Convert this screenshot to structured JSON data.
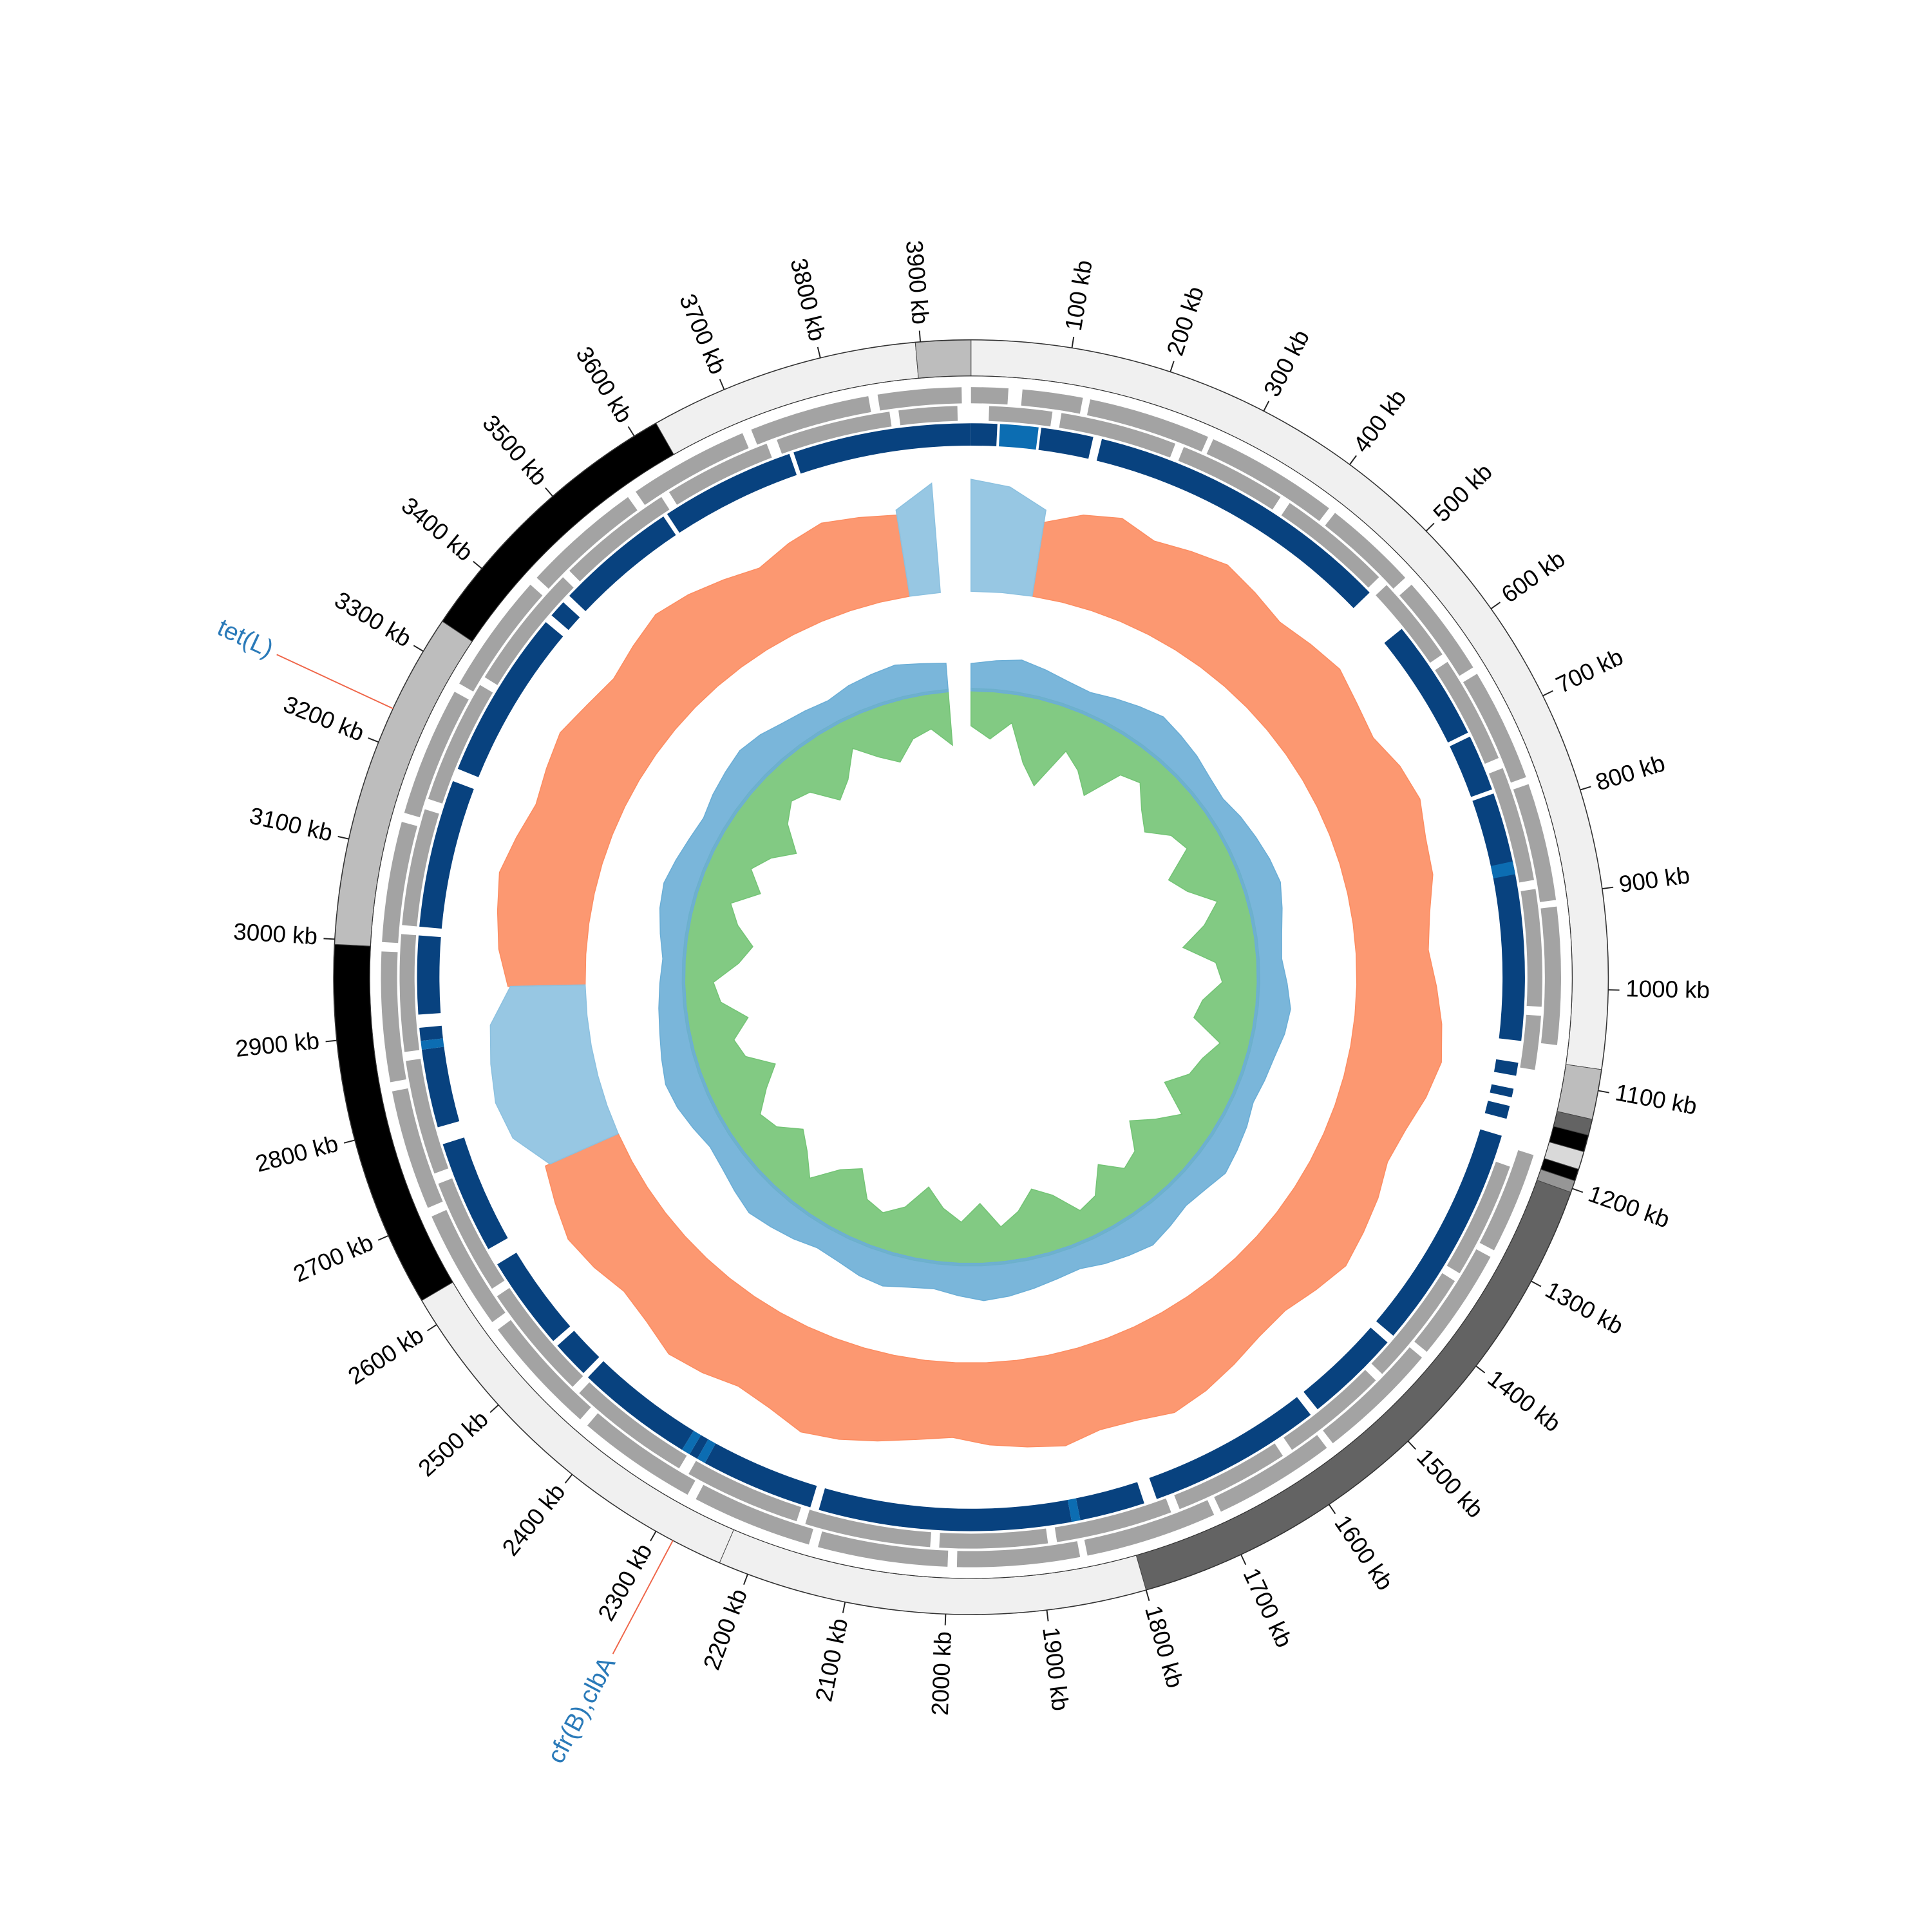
{
  "chart_data": {
    "type": "circular",
    "genome_length": 3950,
    "ticks": [
      {
        "value": 100,
        "label": "100 kb"
      },
      {
        "value": 200,
        "label": "200 kb"
      },
      {
        "value": 300,
        "label": "300 kb"
      },
      {
        "value": 400,
        "label": "400 kb"
      },
      {
        "value": 500,
        "label": "500 kb"
      },
      {
        "value": 600,
        "label": "600 kb"
      },
      {
        "value": 700,
        "label": "700 kb"
      },
      {
        "value": 800,
        "label": "800 kb"
      },
      {
        "value": 900,
        "label": "900 kb"
      },
      {
        "value": 1000,
        "label": "1000 kb"
      },
      {
        "value": 1100,
        "label": "1100 kb"
      },
      {
        "value": 1200,
        "label": "1200 kb"
      },
      {
        "value": 1300,
        "label": "1300 kb"
      },
      {
        "value": 1400,
        "label": "1400 kb"
      },
      {
        "value": 1500,
        "label": "1500 kb"
      },
      {
        "value": 1600,
        "label": "1600 kb"
      },
      {
        "value": 1700,
        "label": "1700 kb"
      },
      {
        "value": 1800,
        "label": "1800 kb"
      },
      {
        "value": 1900,
        "label": "1900 kb"
      },
      {
        "value": 2000,
        "label": "2000 kb"
      },
      {
        "value": 2100,
        "label": "2100 kb"
      },
      {
        "value": 2200,
        "label": "2200 kb"
      },
      {
        "value": 2300,
        "label": "2300 kb"
      },
      {
        "value": 2400,
        "label": "2400 kb"
      },
      {
        "value": 2500,
        "label": "2500 kb"
      },
      {
        "value": 2600,
        "label": "2600 kb"
      },
      {
        "value": 2700,
        "label": "2700 kb"
      },
      {
        "value": 2800,
        "label": "2800 kb"
      },
      {
        "value": 2900,
        "label": "2900 kb"
      },
      {
        "value": 3000,
        "label": "3000 kb"
      },
      {
        "value": 3100,
        "label": "3100 kb"
      },
      {
        "value": 3200,
        "label": "3200 kb"
      },
      {
        "value": 3300,
        "label": "3300 kb"
      },
      {
        "value": 3400,
        "label": "3400 kb"
      },
      {
        "value": 3500,
        "label": "3500 kb"
      },
      {
        "value": 3600,
        "label": "3600 kb"
      },
      {
        "value": 3700,
        "label": "3700 kb"
      },
      {
        "value": 3800,
        "label": "3800 kb"
      },
      {
        "value": 3900,
        "label": "3900 kb"
      }
    ],
    "contigs": [
      {
        "start": 0,
        "end": 1079,
        "color": "#f0f0f0"
      },
      {
        "start": 1079,
        "end": 1129,
        "color": "#bdbdbd"
      },
      {
        "start": 1129,
        "end": 1145,
        "color": "#636363"
      },
      {
        "start": 1145,
        "end": 1162,
        "color": "#000000"
      },
      {
        "start": 1162,
        "end": 1180,
        "color": "#d9d9d9"
      },
      {
        "start": 1180,
        "end": 1192,
        "color": "#000000"
      },
      {
        "start": 1192,
        "end": 1204,
        "color": "#969696"
      },
      {
        "start": 1204,
        "end": 1800,
        "color": "#636363"
      },
      {
        "start": 1800,
        "end": 2230,
        "color": "#f0f0f0"
      },
      {
        "start": 2230,
        "end": 2628,
        "color": "#f0f0f0"
      },
      {
        "start": 2628,
        "end": 2995,
        "color": "#000000"
      },
      {
        "start": 2995,
        "end": 3335,
        "color": "#bdbdbd"
      },
      {
        "start": 3335,
        "end": 3625,
        "color": "#000000"
      },
      {
        "start": 3625,
        "end": 3895,
        "color": "#f0f0f0"
      },
      {
        "start": 3895,
        "end": 3950,
        "color": "#bdbdbd"
      }
    ],
    "gene_color": "#a3a3a3",
    "genes": {
      "forward": [
        [
          0,
          40
        ],
        [
          55,
          120
        ],
        [
          128,
          260
        ],
        [
          266,
          410
        ],
        [
          418,
          520
        ],
        [
          530,
          640
        ],
        [
          648,
          770
        ],
        [
          778,
          905
        ],
        [
          912,
          1060
        ],
        [
          1180,
          1290
        ],
        [
          1298,
          1420
        ],
        [
          1428,
          1560
        ],
        [
          1568,
          1700
        ],
        [
          1708,
          1850
        ],
        [
          1858,
          1990
        ],
        [
          2000,
          2140
        ],
        [
          2150,
          2280
        ],
        [
          2290,
          2420
        ],
        [
          2430,
          2560
        ],
        [
          2570,
          2700
        ],
        [
          2710,
          2840
        ],
        [
          2850,
          2990
        ],
        [
          3000,
          3130
        ],
        [
          3140,
          3280
        ],
        [
          3290,
          3420
        ],
        [
          3430,
          3560
        ],
        [
          3570,
          3700
        ],
        [
          3710,
          3840
        ],
        [
          3850,
          3940
        ]
      ],
      "reverse": [
        [
          20,
          90
        ],
        [
          100,
          230
        ],
        [
          240,
          360
        ],
        [
          372,
          500
        ],
        [
          512,
          610
        ],
        [
          620,
          740
        ],
        [
          752,
          880
        ],
        [
          890,
          1020
        ],
        [
          1030,
          1090
        ],
        [
          1200,
          1330
        ],
        [
          1340,
          1470
        ],
        [
          1480,
          1600
        ],
        [
          1612,
          1740
        ],
        [
          1750,
          1880
        ],
        [
          1890,
          2010
        ],
        [
          2020,
          2160
        ],
        [
          2170,
          2300
        ],
        [
          2312,
          2450
        ],
        [
          2460,
          2590
        ],
        [
          2600,
          2730
        ],
        [
          2742,
          2870
        ],
        [
          2880,
          3010
        ],
        [
          3020,
          3150
        ],
        [
          3162,
          3300
        ],
        [
          3310,
          3450
        ],
        [
          3460,
          3590
        ],
        [
          3600,
          3720
        ],
        [
          3732,
          3860
        ],
        [
          3870,
          3935
        ]
      ]
    },
    "hit_tracks": [
      {
        "color": "#08427f",
        "segments": [
          [
            3745,
            3950
          ],
          [
            0,
            30
          ],
          [
            80,
            140
          ],
          [
            150,
            505
          ],
          [
            560,
            700
          ],
          [
            705,
            770
          ],
          [
            775,
            1060
          ],
          [
            1085,
            1100
          ],
          [
            1115,
            1125
          ],
          [
            1135,
            1150
          ],
          [
            1170,
            1430
          ],
          [
            1440,
            1550
          ],
          [
            1560,
            1760
          ],
          [
            1775,
            1850
          ],
          [
            1860,
            2150
          ],
          [
            2160,
            2290
          ],
          [
            2300,
            2310
          ],
          [
            2320,
            2455
          ],
          [
            2462,
            2505
          ],
          [
            2512,
            2620
          ],
          [
            2640,
            2770
          ],
          [
            2790,
            2880
          ],
          [
            2890,
            2905
          ],
          [
            2920,
            3010
          ],
          [
            3020,
            3190
          ],
          [
            3205,
            3400
          ],
          [
            3410,
            3430
          ],
          [
            3440,
            3580
          ],
          [
            3585,
            3740
          ]
        ]
      },
      {
        "color": "#0c6db2",
        "segments": [
          [
            33,
            77
          ],
          [
            855,
            870
          ],
          [
            1850,
            1860
          ],
          [
            2290,
            2300
          ],
          [
            2310,
            2320
          ],
          [
            2880,
            2890
          ]
        ]
      }
    ],
    "x": [
      0,
      50,
      100,
      150,
      200,
      250,
      300,
      350,
      400,
      450,
      500,
      550,
      600,
      650,
      700,
      750,
      800,
      850,
      900,
      950,
      1000,
      1050,
      1100,
      1150,
      1200,
      1250,
      1300,
      1350,
      1400,
      1450,
      1500,
      1550,
      1600,
      1650,
      1700,
      1750,
      1800,
      1850,
      1900,
      1950,
      2000,
      2050,
      2100,
      2150,
      2200,
      2250,
      2300,
      2350,
      2400,
      2450,
      2500,
      2550,
      2600,
      2650,
      2700,
      2750,
      2800,
      2850,
      2900,
      2950,
      3000,
      3050,
      3100,
      3150,
      3200,
      3250,
      3300,
      3350,
      3400,
      3450,
      3500,
      3550,
      3600,
      3650,
      3700,
      3750,
      3800,
      3850,
      3900
    ],
    "tracks": [
      {
        "series": [
          {
            "color": "#fc8d62",
            "values": [
              null,
              null,
              60,
              72,
              78,
              70,
              75,
              80,
              74,
              68,
              72,
              76,
              70,
              66,
              74,
              78,
              72,
              70,
              62,
              58,
              64,
              70,
              74,
              68,
              60,
              56,
              62,
              66,
              70,
              64,
              58,
              60,
              66,
              72,
              76,
              70,
              68,
              74,
              70,
              66,
              60,
              64,
              70,
              76,
              80,
              72,
              68,
              74,
              78,
              70,
              66,
              72,
              76,
              70,
              64,
              null,
              null,
              null,
              null,
              62,
              70,
              74,
              78,
              72,
              66,
              70,
              74,
              68,
              64,
              70,
              76,
              72,
              66,
              60,
              68,
              74,
              70,
              66,
              null
            ]
          },
          {
            "color": "#8cc1e0",
            "values": [
              90,
              85,
              70,
              null,
              null,
              null,
              null,
              null,
              null,
              null,
              null,
              null,
              null,
              null,
              null,
              null,
              null,
              null,
              null,
              null,
              null,
              null,
              null,
              null,
              null,
              null,
              null,
              null,
              null,
              null,
              null,
              null,
              null,
              null,
              null,
              null,
              null,
              null,
              null,
              null,
              null,
              null,
              null,
              null,
              null,
              null,
              null,
              null,
              null,
              null,
              null,
              null,
              null,
              null,
              60,
              80,
              85,
              82,
              78,
              60,
              null,
              null,
              null,
              null,
              null,
              null,
              null,
              null,
              null,
              null,
              null,
              null,
              null,
              null,
              null,
              null,
              null,
              70,
              88
            ]
          }
        ]
      },
      {
        "series": [
          {
            "color": "#6baed6",
            "values": [
              22,
              25,
              28,
              24,
              20,
              18,
              22,
              26,
              30,
              27,
              24,
              20,
              18,
              22,
              25,
              28,
              30,
              26,
              22,
              20,
              24,
              28,
              26,
              22,
              20,
              18,
              22,
              25,
              28,
              24,
              22,
              26,
              30,
              27,
              24,
              20,
              22,
              25,
              28,
              30,
              26,
              22,
              24,
              28,
              26,
              22,
              20,
              24,
              27,
              30,
              26,
              22,
              20,
              24,
              28,
              30,
              27,
              24,
              22,
              20,
              18,
              22,
              26,
              28,
              25,
              22,
              20,
              24,
              27,
              30,
              28,
              24,
              22,
              20,
              24,
              26,
              28,
              25,
              23
            ]
          },
          {
            "color": "#74c476",
            "values": [
              30,
              40,
              25,
              55,
              70,
              35,
              45,
              60,
              30,
              25,
              40,
              50,
              35,
              30,
              55,
              45,
              25,
              40,
              60,
              35,
              30,
              45,
              50,
              25,
              35,
              40,
              55,
              30,
              45,
              60,
              40,
              35,
              50,
              30,
              25,
              45,
              55,
              40,
              30,
              50,
              35,
              45,
              60,
              40,
              30,
              35,
              55,
              45,
              25,
              40,
              50,
              35,
              30,
              45,
              60,
              40,
              35,
              50,
              30,
              25,
              45,
              55,
              40,
              30,
              50,
              35,
              45,
              60,
              40,
              30,
              35,
              55,
              45,
              25,
              40,
              50,
              35,
              30,
              45
            ]
          }
        ]
      }
    ],
    "annotation_color": "#2a7ab9",
    "annotation_line_color": "#ef6548",
    "annotations": [
      {
        "label": "tet(L)",
        "position": 3236
      },
      {
        "label": "cfr(B),clbA",
        "position": 2281
      }
    ]
  }
}
